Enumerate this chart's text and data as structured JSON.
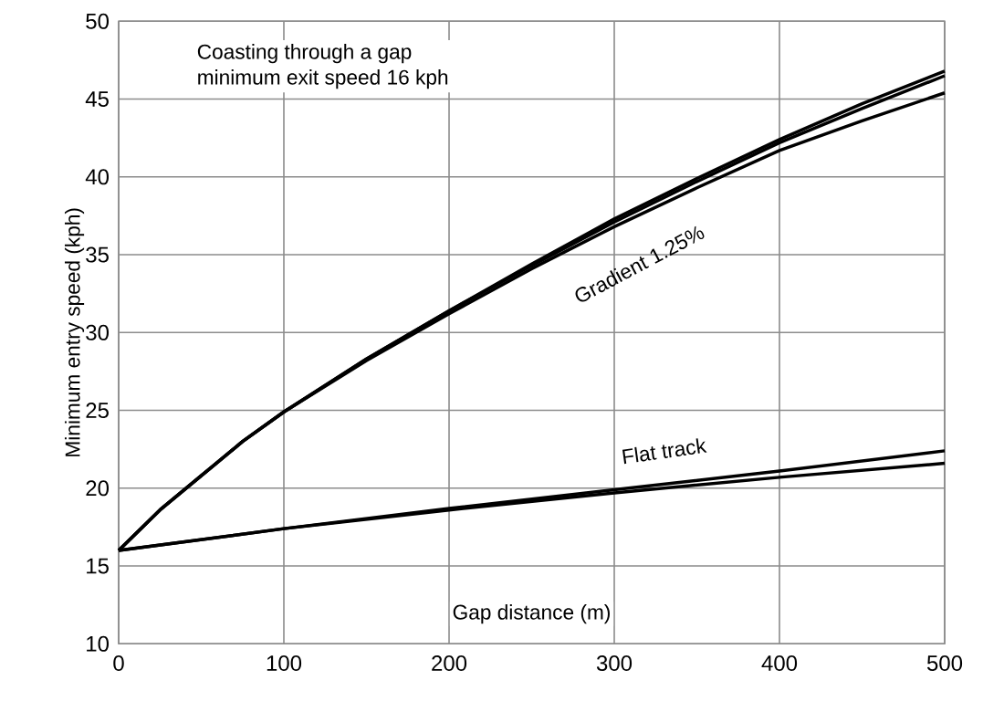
{
  "chart_data": {
    "type": "line",
    "title": "Coasting through a gap",
    "subtitle": "minimum exit speed 16 kph",
    "xlabel": "Gap distance (m)",
    "ylabel": "Minimum entry speed (kph)",
    "xlim": [
      0,
      500
    ],
    "ylim": [
      10,
      50
    ],
    "xticks": [
      0,
      100,
      200,
      300,
      400,
      500
    ],
    "yticks": [
      10,
      15,
      20,
      25,
      30,
      35,
      40,
      45,
      50
    ],
    "grid": true,
    "marker": "none",
    "line_style": "solid",
    "series": [
      {
        "color": "#000000",
        "x": [
          0,
          25,
          50,
          75,
          100,
          150,
          200,
          250,
          300,
          350,
          400,
          450,
          500
        ],
        "values": [
          16,
          18.6,
          20.8,
          23.0,
          24.9,
          28.3,
          31.4,
          34.4,
          37.3,
          39.9,
          42.4,
          44.7,
          46.8
        ]
      },
      {
        "color": "#000000",
        "x": [
          0,
          25,
          50,
          75,
          100,
          150,
          200,
          250,
          300,
          350,
          400,
          450,
          500
        ],
        "values": [
          16,
          18.6,
          20.8,
          23.0,
          24.9,
          28.3,
          31.4,
          34.3,
          37.1,
          39.7,
          42.2,
          44.4,
          46.5
        ]
      },
      {
        "color": "#000000",
        "x": [
          0,
          25,
          50,
          75,
          100,
          150,
          200,
          250,
          300,
          350,
          400,
          450,
          500
        ],
        "values": [
          16,
          18.6,
          20.8,
          23.0,
          24.9,
          28.2,
          31.2,
          34.1,
          36.8,
          39.3,
          41.7,
          43.6,
          45.4
        ]
      },
      {
        "color": "#000000",
        "x": [
          0,
          100,
          200,
          300,
          400,
          500
        ],
        "values": [
          16,
          17.4,
          18.7,
          19.9,
          21.1,
          22.4
        ]
      },
      {
        "color": "#000000",
        "x": [
          0,
          100,
          200,
          300,
          400,
          500
        ],
        "values": [
          16,
          17.4,
          18.6,
          19.7,
          20.7,
          21.6
        ]
      }
    ],
    "annotations": [
      "Gradient 1.25%",
      "Flat track"
    ]
  }
}
